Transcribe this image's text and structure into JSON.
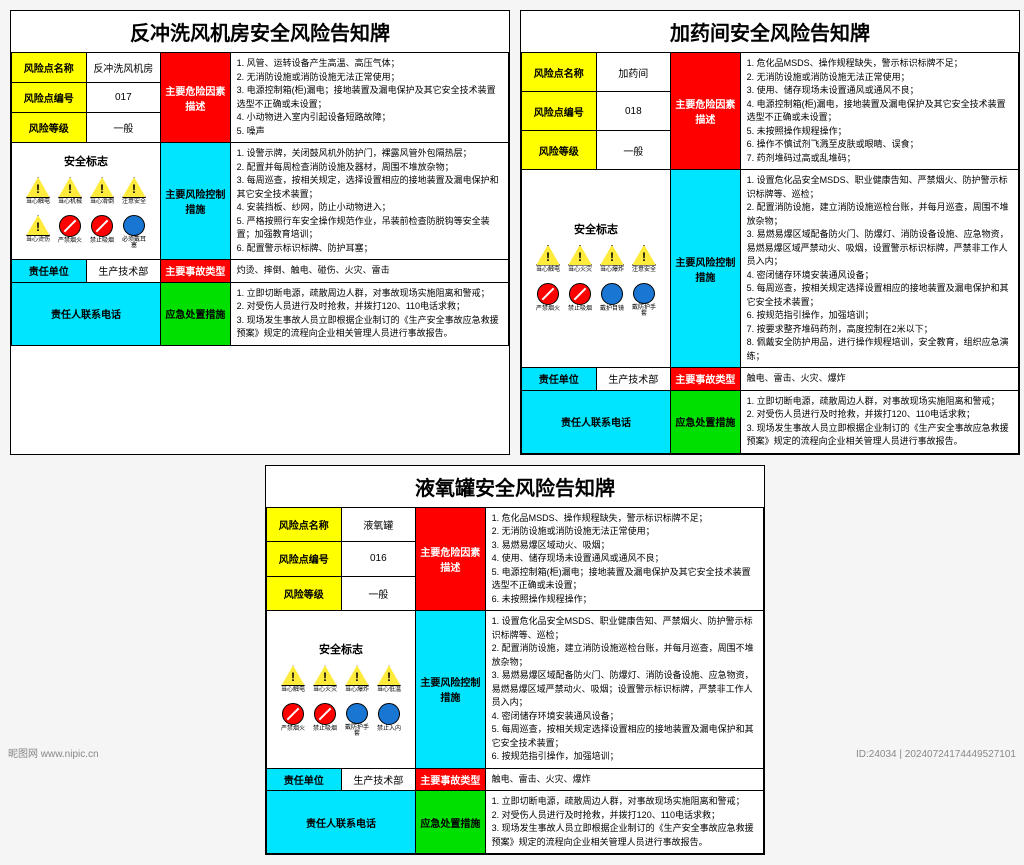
{
  "watermark": "昵图网 www.nipic.cn",
  "meta": "ID:24034 | 20240724174449527101",
  "boards": [
    {
      "title": "反冲洗风机房安全风险告知牌",
      "name_lbl": "风险点名称",
      "name_val": "反冲洗风机房",
      "code_lbl": "风险点编号",
      "code_val": "017",
      "level_lbl": "风险等级",
      "level_val": "一般",
      "hazard_lbl": "主要危险因素描述",
      "hazard_desc": "1. 风管、运转设备产生高温、高压气体；\n2. 无消防设施或消防设施无法正常使用；\n3. 电源控制箱(柜)漏电；接地装置及漏电保护及其它安全技术装置选型不正确或未设置；\n4. 小动物进入室内引起设备短路故障；\n5. 噪声",
      "safety_lbl": "安全标志",
      "control_lbl": "主要风险控制措施",
      "control_desc": "1. 设警示牌，关闭鼓风机外防护门，裸露风管外包隔热层；\n2. 配置并每周检查消防设施及器材，周围不堆放杂物；\n3. 每周巡查，按相关规定，选择设置相应的接地装置及漏电保护和其它安全技术装置；\n4. 安装挡板、纱网，防止小动物进入；\n5. 严格按照行车安全操作规范作业，吊装前检查防脱钩等安全装置；加强教育培训；\n6. 配置警示标识标牌、防护耳塞；",
      "unit_lbl": "责任单位",
      "unit_val": "生产技术部",
      "accident_lbl": "主要事故类型",
      "accident_val": "灼烫、摔倒、触电、碰伤、火灾、雷击",
      "contact_lbl": "责任人联系电话",
      "emerg_lbl": "应急处置措施",
      "emerg_desc": "1. 立即切断电源，疏散周边人群，对事故现场实施阻离和警戒；\n2. 对受伤人员进行及时抢救，并拨打120、110电话求救；\n3. 现场发生事故人员立即根据企业制订的《生产安全事故应急救援预案》规定的流程向企业相关管理人员进行事故报告。",
      "icons": [
        {
          "t": "tri",
          "l": "当心触电"
        },
        {
          "t": "tri",
          "l": "当心机械"
        },
        {
          "t": "tri",
          "l": "当心滑倒"
        },
        {
          "t": "tri",
          "l": "注意安全"
        },
        {
          "t": "tri",
          "l": "当心烫伤"
        },
        {
          "t": "red",
          "l": "严禁烟火"
        },
        {
          "t": "red",
          "l": "禁止吸烟"
        },
        {
          "t": "blue",
          "l": "必须戴耳塞"
        }
      ]
    },
    {
      "title": "加药间安全风险告知牌",
      "name_lbl": "风险点名称",
      "name_val": "加药间",
      "code_lbl": "风险点编号",
      "code_val": "018",
      "level_lbl": "风险等级",
      "level_val": "一般",
      "hazard_lbl": "主要危险因素描述",
      "hazard_desc": "1. 危化品MSDS、操作规程缺失，警示标识标牌不足；\n2. 无消防设施或消防设施无法正常使用；\n3. 使用、储存现场未设置通风或通风不良；\n4. 电源控制箱(柜)漏电，接地装置及漏电保护及其它安全技术装置选型不正确或未设置；\n5. 未按照操作规程操作；\n6. 操作不慎试剂飞溅至皮肤或眼睛、误食；\n7. 药剂堆码过高或乱堆码；",
      "safety_lbl": "安全标志",
      "control_lbl": "主要风险控制措施",
      "control_desc": "1. 设置危化品安全MSDS、职业健康告知、严禁烟火、防护警示标识标牌等、巡检；\n2. 配置消防设施，建立消防设施巡检台账，并每月巡查，周围不堆放杂物；\n3. 易燃易爆区域配备防火门、防爆灯、消防设备设施、应急物资，易燃易爆区域严禁动火、吸烟，设置警示标识标牌，严禁非工作人员入内；\n4. 密闭储存环境安装通风设备；\n5. 每周巡查，按相关规定选择设置相应的接地装置及漏电保护和其它安全技术装置；\n6. 按规范指引操作，加强培训；\n7. 按要求整齐堆码药剂，高度控制在2米以下；\n8. 佩戴安全防护用品，进行操作规程培训，安全教育，组织应急演练；",
      "unit_lbl": "责任单位",
      "unit_val": "生产技术部",
      "accident_lbl": "主要事故类型",
      "accident_val": "触电、雷击、火灾、爆炸",
      "contact_lbl": "责任人联系电话",
      "emerg_lbl": "应急处置措施",
      "emerg_desc": "1. 立即切断电源，疏散周边人群，对事故现场实施阻离和警戒；\n2. 对受伤人员进行及时抢救，并拨打120、110电话求救；\n3. 现场发生事故人员立即根据企业制订的《生产安全事故应急救援预案》规定的流程向企业相关管理人员进行事故报告。",
      "icons": [
        {
          "t": "tri",
          "l": "当心触电"
        },
        {
          "t": "tri",
          "l": "当心火灾"
        },
        {
          "t": "tri",
          "l": "当心爆炸"
        },
        {
          "t": "tri",
          "l": "注意安全"
        },
        {
          "t": "red",
          "l": "严禁烟火"
        },
        {
          "t": "red",
          "l": "禁止吸烟"
        },
        {
          "t": "blue",
          "l": "戴护目镜"
        },
        {
          "t": "blue",
          "l": "戴防护手套"
        }
      ]
    },
    {
      "title": "液氧罐安全风险告知牌",
      "name_lbl": "风险点名称",
      "name_val": "液氧罐",
      "code_lbl": "风险点编号",
      "code_val": "016",
      "level_lbl": "风险等级",
      "level_val": "一般",
      "hazard_lbl": "主要危险因素描述",
      "hazard_desc": "1. 危化品MSDS、操作规程缺失，警示标识标牌不足；\n2. 无消防设施或消防设施无法正常使用；\n3. 易燃易爆区域动火、吸烟；\n4. 使用、储存现场未设置通风或通风不良；\n5. 电源控制箱(柜)漏电；接地装置及漏电保护及其它安全技术装置选型不正确或未设置；\n6. 未按照操作规程操作；",
      "safety_lbl": "安全标志",
      "control_lbl": "主要风险控制措施",
      "control_desc": "1. 设置危化品安全MSDS、职业健康告知、严禁烟火、防护警示标识标牌等、巡检；\n2. 配置消防设施，建立消防设施巡检台账，并每月巡查，周围不堆放杂物；\n3. 易燃易爆区域配备防火门、防爆灯、消防设备设施、应急物资，易燃易爆区域严禁动火、吸烟；设置警示标识标牌，严禁非工作人员入内；\n4. 密闭储存环境安装通风设备；\n5. 每周巡查，按相关规定选择设置相应的接地装置及漏电保护和其它安全技术装置；\n6. 按规范指引操作，加强培训；",
      "unit_lbl": "责任单位",
      "unit_val": "生产技术部",
      "accident_lbl": "主要事故类型",
      "accident_val": "触电、雷击、火灾、爆炸",
      "contact_lbl": "责任人联系电话",
      "emerg_lbl": "应急处置措施",
      "emerg_desc": "1. 立即切断电源，疏散周边人群，对事故现场实施阻离和警戒；\n2. 对受伤人员进行及时抢救，并拨打120、110电话求救；\n3. 现场发生事故人员立即根据企业制订的《生产安全事故应急救援预案》规定的流程向企业相关管理人员进行事故报告。",
      "icons": [
        {
          "t": "tri",
          "l": "当心触电"
        },
        {
          "t": "tri",
          "l": "当心火灾"
        },
        {
          "t": "tri",
          "l": "当心爆炸"
        },
        {
          "t": "tri",
          "l": "当心低温"
        },
        {
          "t": "red",
          "l": "严禁烟火"
        },
        {
          "t": "red",
          "l": "禁止吸烟"
        },
        {
          "t": "blue",
          "l": "戴防护手套"
        },
        {
          "t": "blue",
          "l": "禁止入内"
        }
      ]
    }
  ]
}
